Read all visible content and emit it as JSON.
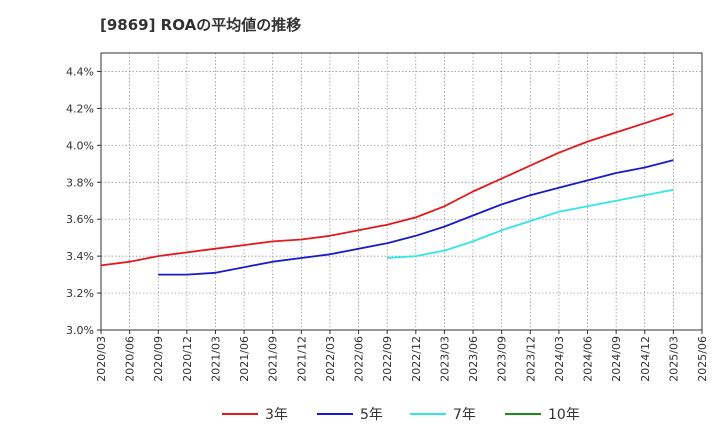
{
  "title": "[9869]  ROAの平均値の推移",
  "chart_data": {
    "type": "line",
    "title": "[9869]  ROAの平均値の推移",
    "xlabel": "",
    "ylabel": "",
    "y_tick_labels": [
      "3.0%",
      "3.2%",
      "3.4%",
      "3.6%",
      "3.8%",
      "4.0%",
      "4.2%",
      "4.4%"
    ],
    "y_ticks": [
      3.0,
      3.2,
      3.4,
      3.6,
      3.8,
      4.0,
      4.2,
      4.4
    ],
    "ylim": [
      3.0,
      4.5
    ],
    "x_tick_labels": [
      "2020/03",
      "2020/06",
      "2020/09",
      "2020/12",
      "2021/03",
      "2021/06",
      "2021/09",
      "2021/12",
      "2022/03",
      "2022/06",
      "2022/09",
      "2022/12",
      "2023/03",
      "2023/06",
      "2023/09",
      "2023/12",
      "2024/03",
      "2024/06",
      "2024/09",
      "2024/12",
      "2025/03",
      "2025/06"
    ],
    "grid": true,
    "legend_position": "bottom",
    "series": [
      {
        "name": "3年",
        "color": "#e31a1c",
        "start_index": 0,
        "values": [
          3.35,
          3.37,
          3.4,
          3.42,
          3.44,
          3.46,
          3.48,
          3.49,
          3.51,
          3.54,
          3.57,
          3.61,
          3.67,
          3.75,
          3.82,
          3.89,
          3.96,
          4.02,
          4.07,
          4.12,
          4.17
        ]
      },
      {
        "name": "5年",
        "color": "#1a1acd",
        "start_index": 2,
        "values": [
          3.3,
          3.3,
          3.31,
          3.34,
          3.37,
          3.39,
          3.41,
          3.44,
          3.47,
          3.51,
          3.56,
          3.62,
          3.68,
          3.73,
          3.77,
          3.81,
          3.85,
          3.88,
          3.92
        ]
      },
      {
        "name": "7年",
        "color": "#33e6e6",
        "start_index": 10,
        "values": [
          3.39,
          3.4,
          3.43,
          3.48,
          3.54,
          3.59,
          3.64,
          3.67,
          3.7,
          3.73,
          3.76
        ]
      },
      {
        "name": "10年",
        "color": "#1a8c1a",
        "start_index": 0,
        "values": []
      }
    ]
  }
}
